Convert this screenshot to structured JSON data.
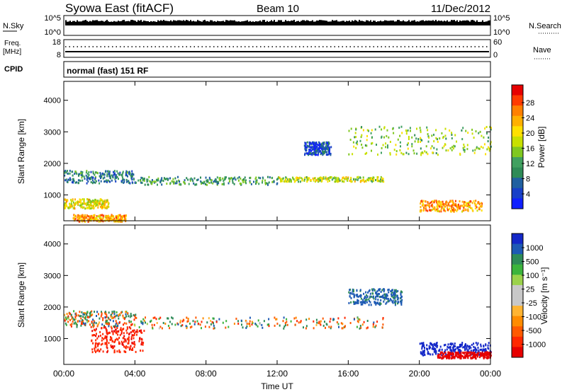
{
  "header": {
    "station": "Syowa East (fitACF)",
    "beam": "Beam 10",
    "date": "11/Dec/2012",
    "mode": "normal (fast) 151 RF"
  },
  "strips": {
    "nsky_label": "N.Sky",
    "nsky_ticks": [
      "10^5",
      "10^0"
    ],
    "nsearch_label": "N.Search",
    "nsearch_ticks": [
      "10^5",
      "10^0"
    ],
    "freq_label_line1": "Freq.",
    "freq_label_line2": "[MHz]",
    "freq_ticks": [
      "18",
      "8"
    ],
    "nave_label": "Nave",
    "nave_ticks": [
      "60",
      "0"
    ],
    "cpid_label": "CPID"
  },
  "colorbars": {
    "power": {
      "label": "Power [dB]",
      "ticks": [
        "28",
        "24",
        "20",
        "16",
        "12",
        "8",
        "4"
      ],
      "colors": [
        "#e60000",
        "#ff3a00",
        "#ff8000",
        "#ffb000",
        "#ffe000",
        "#c8e000",
        "#80c820",
        "#40a060",
        "#2e8b57",
        "#2060a0",
        "#1840c8",
        "#1020ff"
      ]
    },
    "velocity": {
      "label": "Velocity [m s⁻¹]",
      "ticks": [
        "1000",
        "500",
        "100",
        "25",
        "-25",
        "-100",
        "-500",
        "-1000"
      ],
      "colors": [
        "#1428c8",
        "#1e5ab4",
        "#2e8b57",
        "#3cb43c",
        "#9bd24b",
        "#c8c8c8",
        "#c8c8c8",
        "#ffb432",
        "#ff8c00",
        "#ff5a00",
        "#ff2800",
        "#e60000"
      ]
    }
  },
  "chart_data": [
    {
      "type": "heatmap",
      "title": "Power",
      "xlabel": "Time UT",
      "ylabel": "Slant Range [km]",
      "x_ticks": [
        "00:00",
        "04:00",
        "08:00",
        "12:00",
        "16:00",
        "20:00",
        "00:00"
      ],
      "xlim": [
        0,
        24
      ],
      "y_ticks": [
        "1000",
        "2000",
        "3000",
        "4000"
      ],
      "ylim": [
        180,
        4600
      ],
      "colorbar": "Power [dB]",
      "regions": [
        {
          "t0": 0,
          "t1": 4,
          "r0": 1400,
          "r1": 1800,
          "value": 10
        },
        {
          "t0": 0,
          "t1": 2.5,
          "r0": 600,
          "r1": 900,
          "value": 20
        },
        {
          "t0": 0.5,
          "t1": 3.5,
          "r0": 180,
          "r1": 400,
          "value": 24
        },
        {
          "t0": 4,
          "t1": 12,
          "r0": 1350,
          "r1": 1600,
          "value": 12
        },
        {
          "t0": 12,
          "t1": 18,
          "r0": 1450,
          "r1": 1600,
          "value": 18
        },
        {
          "t0": 13.5,
          "t1": 15,
          "r0": 2300,
          "r1": 2700,
          "value": 6
        },
        {
          "t0": 16,
          "t1": 24,
          "r0": 2300,
          "r1": 3200,
          "value": 16
        },
        {
          "t0": 20,
          "t1": 23.5,
          "r0": 500,
          "r1": 850,
          "value": 24
        }
      ]
    },
    {
      "type": "heatmap",
      "title": "Velocity",
      "xlabel": "Time UT",
      "ylabel": "Slant Range [km]",
      "x_ticks": [
        "00:00",
        "04:00",
        "08:00",
        "12:00",
        "16:00",
        "20:00",
        "00:00"
      ],
      "xlim": [
        0,
        24
      ],
      "y_ticks": [
        "1000",
        "2000",
        "3000",
        "4000"
      ],
      "ylim": [
        180,
        4600
      ],
      "colorbar": "Velocity [m s⁻¹]",
      "regions": [
        {
          "t0": 0,
          "t1": 4,
          "r0": 1400,
          "r1": 1900,
          "value": 0
        },
        {
          "t0": 1.5,
          "t1": 4.5,
          "r0": 600,
          "r1": 1400,
          "value": -300
        },
        {
          "t0": 4,
          "t1": 18,
          "r0": 1350,
          "r1": 1700,
          "value": 0
        },
        {
          "t0": 16,
          "t1": 19,
          "r0": 2100,
          "r1": 2600,
          "value": 200
        },
        {
          "t0": 20,
          "t1": 24,
          "r0": 500,
          "r1": 900,
          "value": 800
        },
        {
          "t0": 21,
          "t1": 24,
          "r0": 400,
          "r1": 600,
          "value": -800
        }
      ]
    }
  ]
}
